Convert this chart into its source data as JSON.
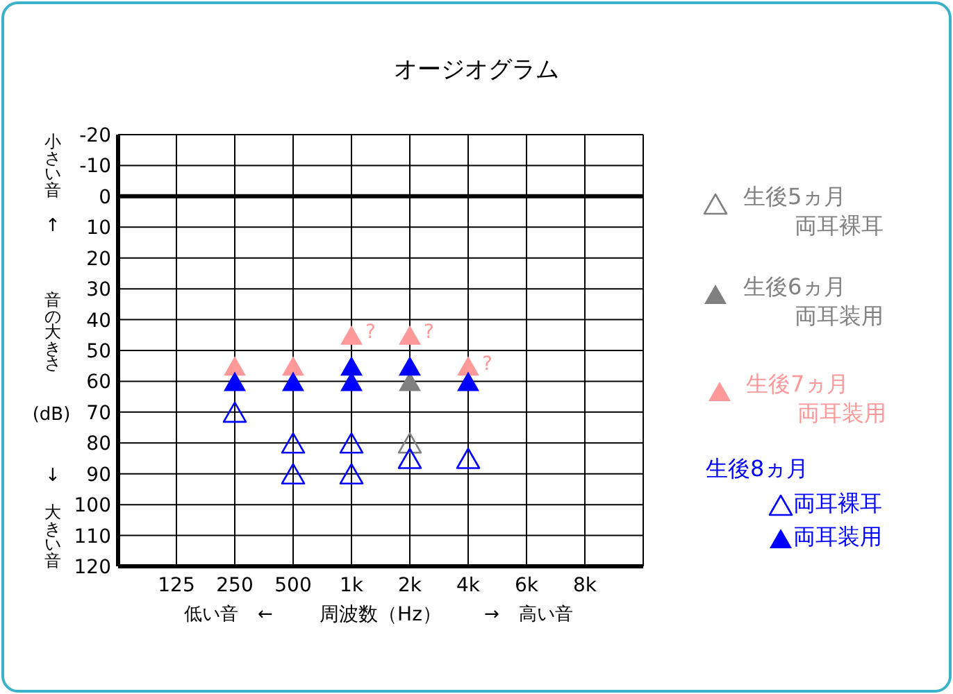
{
  "chart_data": {
    "type": "scatter",
    "title": "オージオグラム",
    "xlabel": "周波数（Hz）",
    "ylabel": "音の大きさ",
    "categories": [
      "125",
      "250",
      "500",
      "1k",
      "2k",
      "4k",
      "6k",
      "8k"
    ],
    "ylim": [
      120,
      -20
    ],
    "yticks": [
      -20,
      -10,
      0,
      10,
      20,
      30,
      40,
      50,
      60,
      70,
      80,
      90,
      100,
      110,
      120
    ],
    "grid": true,
    "marker": "triangle",
    "legend": "right",
    "ref_lines": [
      {
        "axis": "y",
        "value": 0,
        "color": "#000000"
      }
    ],
    "series": [
      {
        "name": "生後5ヵ月両耳裸耳",
        "color": "#808080",
        "marker": "triangle-open",
        "x": [
          "2k"
        ],
        "values": [
          80
        ]
      },
      {
        "name": "生後6ヵ月両耳装用",
        "color": "#808080",
        "x": [
          "2k"
        ],
        "values": [
          60
        ]
      },
      {
        "name": "生後7ヵ月両耳装用",
        "color": "#ff9999",
        "x": [
          "250",
          "500",
          "1k",
          "2k",
          "4k"
        ],
        "values": [
          55,
          55,
          45,
          45,
          55
        ]
      },
      {
        "name": "両耳裸耳",
        "color": "#0000ff",
        "marker": "triangle-open",
        "x": [
          "250",
          "500",
          "500",
          "1k",
          "1k",
          "2k",
          "4k"
        ],
        "values": [
          70,
          80,
          90,
          80,
          90,
          85,
          85
        ]
      },
      {
        "name": "両耳装用",
        "color": "#0000ff",
        "x": [
          "250",
          "500",
          "1k",
          "1k",
          "2k",
          "4k"
        ],
        "values": [
          60,
          60,
          55,
          60,
          55,
          60
        ]
      }
    ],
    "annotations": [
      "小さい音",
      "↑",
      "(dB)",
      "↓",
      "大きい音",
      "低い音",
      "←",
      "→",
      "高い音",
      "生後8ヵ月",
      {
        "text": "?",
        "x": "1k",
        "y": 45
      },
      {
        "text": "?",
        "x": "2k",
        "y": 45
      },
      {
        "text": "?",
        "x": "4k",
        "y": 55
      }
    ]
  }
}
